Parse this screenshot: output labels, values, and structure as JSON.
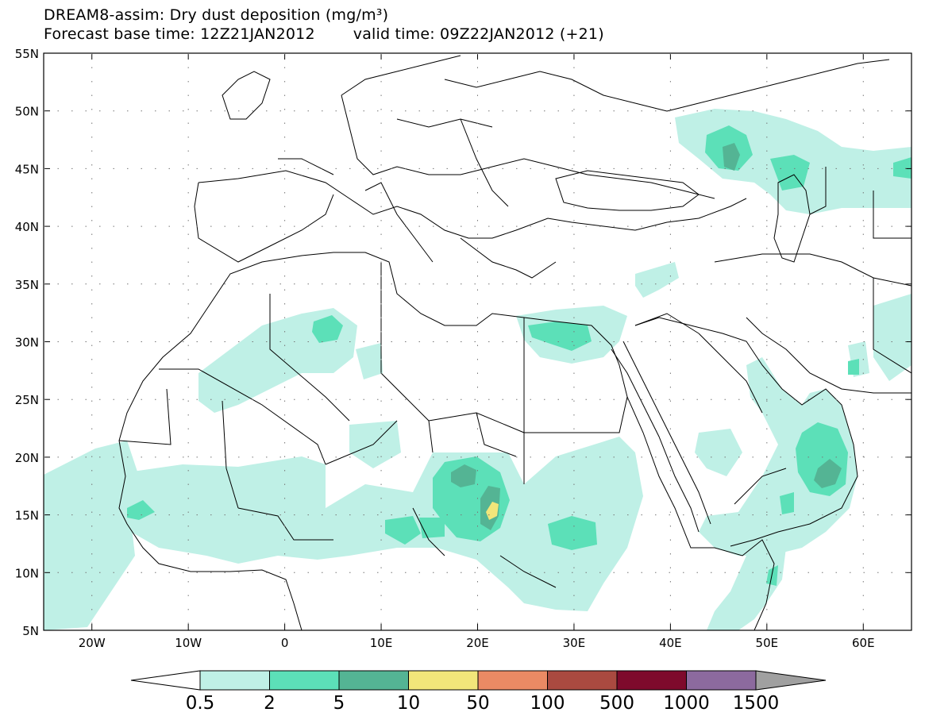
{
  "header": {
    "title": "DREAM8-assim: Dry dust deposition (mg/m³)",
    "base_time": "Forecast base time: 12Z21JAN2012",
    "valid_time": "valid time: 09Z22JAN2012 (+21)"
  },
  "map": {
    "lon_range": [
      -25,
      65
    ],
    "lat_range": [
      5,
      55
    ],
    "lat_ticks": [
      {
        "lat": 55,
        "label": "55N"
      },
      {
        "lat": 50,
        "label": "50N"
      },
      {
        "lat": 45,
        "label": "45N"
      },
      {
        "lat": 40,
        "label": "40N"
      },
      {
        "lat": 35,
        "label": "35N"
      },
      {
        "lat": 30,
        "label": "30N"
      },
      {
        "lat": 25,
        "label": "25N"
      },
      {
        "lat": 20,
        "label": "20N"
      },
      {
        "lat": 15,
        "label": "15N"
      },
      {
        "lat": 10,
        "label": "10N"
      },
      {
        "lat": 5,
        "label": "5N"
      }
    ],
    "lon_ticks": [
      {
        "lon": -20,
        "label": "20W"
      },
      {
        "lon": -10,
        "label": "10W"
      },
      {
        "lon": 0,
        "label": "0"
      },
      {
        "lon": 10,
        "label": "10E"
      },
      {
        "lon": 20,
        "label": "20E"
      },
      {
        "lon": 30,
        "label": "30E"
      },
      {
        "lon": 40,
        "label": "40E"
      },
      {
        "lon": 50,
        "label": "50E"
      },
      {
        "lon": 60,
        "label": "60E"
      }
    ]
  },
  "colorbar": {
    "labels": [
      "0.5",
      "2",
      "5",
      "10",
      "50",
      "100",
      "500",
      "1000",
      "1500"
    ],
    "colors": [
      "#bff0e6",
      "#5ce0b8",
      "#54b494",
      "#f2e67a",
      "#ea8a64",
      "#aa4a40",
      "#7e0a2c",
      "#8c6a9e"
    ],
    "under_color": "#ffffff",
    "over_color": "#a0a0a0"
  },
  "colors": {
    "c1": "#bff0e6",
    "c2": "#5ce0b8",
    "c3": "#54b494",
    "c4": "#f2e67a"
  }
}
